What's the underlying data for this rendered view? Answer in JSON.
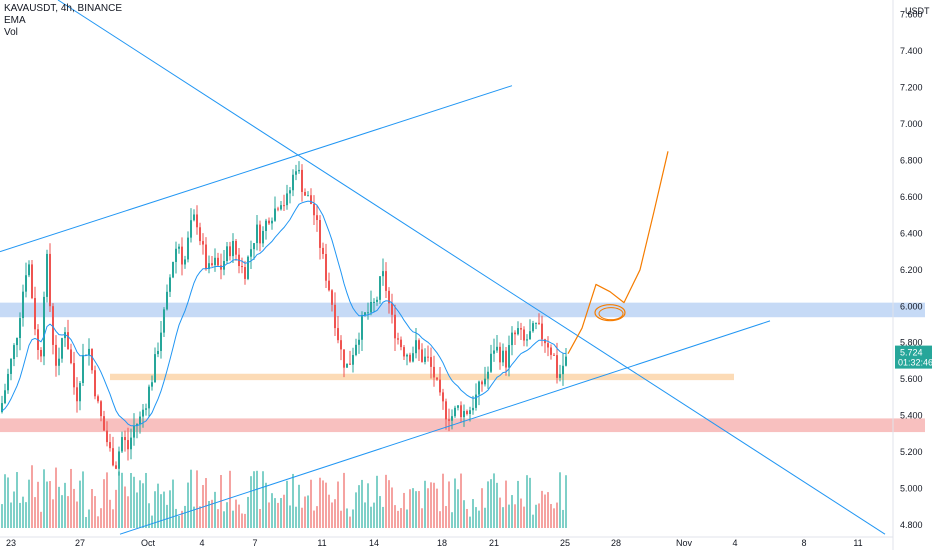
{
  "header": {
    "symbol_line": "KAVAUSDT, 4h, BINANCE",
    "indicator_1": "EMA",
    "indicator_2": "Vol"
  },
  "colors": {
    "up": "#26a69a",
    "down": "#ef5350",
    "vol_up": "#7fd0c8",
    "vol_down": "#f5a3a1",
    "ema": "#2196f3",
    "trendline": "#2196f3",
    "blue_zone": "#bcd3f5",
    "orange_zone": "#fbd5a9",
    "red_zone": "#f7b5b4",
    "projection": "#f57c00",
    "price_tag": "#26a69a"
  },
  "chart_data": {
    "type": "candlestick",
    "y_unit": "USDT",
    "ylim": [
      4.74,
      7.68
    ],
    "y_ticks": [
      "7.600",
      "7.400",
      "7.200",
      "7.000",
      "6.800",
      "6.600",
      "6.400",
      "6.200",
      "6.000",
      "5.800",
      "5.600",
      "5.400",
      "5.200",
      "5.000",
      "4.800"
    ],
    "x_ticks": [
      "23",
      "27",
      "Oct",
      "4",
      "7",
      "11",
      "14",
      "18",
      "21",
      "25",
      "28",
      "Nov",
      "4",
      "8",
      "11"
    ],
    "last_price": "5.724",
    "countdown": "01:32:46",
    "close_path": [
      [
        0,
        5.42
      ],
      [
        8,
        5.62
      ],
      [
        16,
        5.82
      ],
      [
        22,
        6.05
      ],
      [
        28,
        6.28
      ],
      [
        34,
        5.95
      ],
      [
        40,
        5.65
      ],
      [
        46,
        6.32
      ],
      [
        52,
        5.85
      ],
      [
        58,
        5.62
      ],
      [
        64,
        5.92
      ],
      [
        70,
        5.72
      ],
      [
        76,
        5.48
      ],
      [
        82,
        5.7
      ],
      [
        88,
        5.8
      ],
      [
        92,
        5.65
      ],
      [
        98,
        5.45
      ],
      [
        104,
        5.32
      ],
      [
        110,
        5.2
      ],
      [
        116,
        5.14
      ],
      [
        122,
        5.28
      ],
      [
        128,
        5.22
      ],
      [
        134,
        5.34
      ],
      [
        140,
        5.38
      ],
      [
        148,
        5.52
      ],
      [
        154,
        5.66
      ],
      [
        160,
        5.85
      ],
      [
        166,
        6.0
      ],
      [
        172,
        6.24
      ],
      [
        178,
        6.36
      ],
      [
        184,
        6.22
      ],
      [
        190,
        6.42
      ],
      [
        196,
        6.5
      ],
      [
        202,
        6.32
      ],
      [
        208,
        6.18
      ],
      [
        214,
        6.24
      ],
      [
        220,
        6.2
      ],
      [
        226,
        6.28
      ],
      [
        232,
        6.34
      ],
      [
        238,
        6.26
      ],
      [
        244,
        6.18
      ],
      [
        250,
        6.3
      ],
      [
        256,
        6.42
      ],
      [
        262,
        6.38
      ],
      [
        268,
        6.5
      ],
      [
        274,
        6.52
      ],
      [
        280,
        6.6
      ],
      [
        286,
        6.56
      ],
      [
        290,
        6.64
      ],
      [
        296,
        6.78
      ],
      [
        300,
        6.7
      ],
      [
        306,
        6.6
      ],
      [
        312,
        6.56
      ],
      [
        318,
        6.4
      ],
      [
        324,
        6.22
      ],
      [
        330,
        6.08
      ],
      [
        336,
        5.9
      ],
      [
        342,
        5.72
      ],
      [
        348,
        5.66
      ],
      [
        354,
        5.78
      ],
      [
        360,
        5.88
      ],
      [
        366,
        5.96
      ],
      [
        372,
        5.98
      ],
      [
        378,
        6.06
      ],
      [
        382,
        6.18
      ],
      [
        386,
        6.1
      ],
      [
        392,
        5.92
      ],
      [
        398,
        5.82
      ],
      [
        404,
        5.76
      ],
      [
        410,
        5.74
      ],
      [
        416,
        5.78
      ],
      [
        422,
        5.72
      ],
      [
        428,
        5.7
      ],
      [
        434,
        5.62
      ],
      [
        440,
        5.48
      ],
      [
        446,
        5.42
      ],
      [
        452,
        5.4
      ],
      [
        458,
        5.44
      ],
      [
        464,
        5.42
      ],
      [
        470,
        5.44
      ],
      [
        476,
        5.5
      ],
      [
        482,
        5.58
      ],
      [
        488,
        5.64
      ],
      [
        494,
        5.78
      ],
      [
        500,
        5.74
      ],
      [
        506,
        5.7
      ],
      [
        512,
        5.82
      ],
      [
        518,
        5.86
      ],
      [
        524,
        5.8
      ],
      [
        530,
        5.84
      ],
      [
        536,
        5.88
      ],
      [
        542,
        5.84
      ],
      [
        548,
        5.8
      ],
      [
        554,
        5.72
      ],
      [
        558,
        5.6
      ],
      [
        562,
        5.66
      ],
      [
        566,
        5.724
      ]
    ],
    "volume_scale": [
      0,
      1
    ]
  },
  "drawings": {
    "trendlines": [
      {
        "from": [
          0,
          6.3
        ],
        "to": [
          512,
          7.21
        ]
      },
      {
        "from": [
          58,
          7.68
        ],
        "to": [
          885,
          4.75
        ]
      },
      {
        "from": [
          120,
          4.75
        ],
        "to": [
          770,
          5.92
        ]
      }
    ],
    "zones": [
      {
        "name": "blue",
        "x": [
          0,
          925
        ],
        "y": [
          5.94,
          6.02
        ]
      },
      {
        "name": "orange",
        "x": [
          110,
          734
        ],
        "y": [
          5.595,
          5.63
        ]
      },
      {
        "name": "red",
        "x": [
          0,
          925
        ],
        "y": [
          5.31,
          5.385
        ]
      }
    ],
    "projection": [
      [
        568,
        5.74
      ],
      [
        582,
        5.88
      ],
      [
        596,
        6.12
      ],
      [
        610,
        6.08
      ],
      [
        624,
        6.02
      ],
      [
        640,
        6.2
      ],
      [
        654,
        6.52
      ],
      [
        668,
        6.85
      ]
    ],
    "circle": {
      "x": 610,
      "y": 5.965
    }
  }
}
